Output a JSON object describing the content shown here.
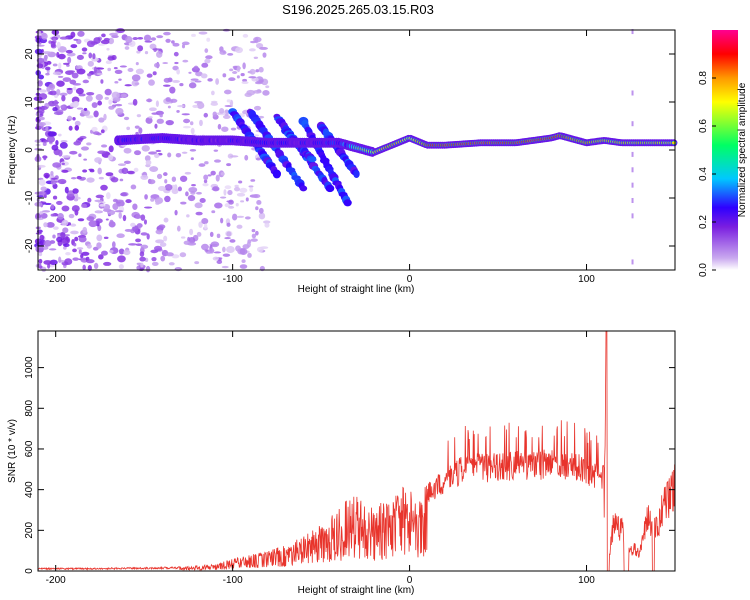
{
  "title": "S196.2025.265.03.15.R03",
  "colors": {
    "snr_line": "#e8342c",
    "axis": "#000000",
    "spectrogram_palette": [
      "#ffffff",
      "#c9a8ef",
      "#7a1ee0",
      "#2f00ff",
      "#00c8ff",
      "#00ff64",
      "#ffff00",
      "#ff9900",
      "#ff0000",
      "#ff0090"
    ]
  },
  "chart_data": [
    {
      "type": "heatmap",
      "name": "spectrogram",
      "xlabel": "Height of straight line (km)",
      "ylabel": "Frequency (Hz)",
      "xlim": [
        -210,
        150
      ],
      "ylim": [
        -25,
        25
      ],
      "x_ticks": [
        -200,
        -100,
        0,
        100
      ],
      "x_tick_labels": [
        "-200",
        "-100",
        "0",
        "100"
      ],
      "y_ticks": [
        -20,
        -10,
        0,
        10,
        20
      ],
      "y_tick_labels": [
        "-20",
        "-10",
        "0",
        "10",
        "20"
      ],
      "description_series": {
        "centerline_x": [
          -165,
          -140,
          -120,
          -100,
          -80,
          -60,
          -40,
          -25,
          -20,
          -10,
          0,
          10,
          20,
          40,
          60,
          80,
          85,
          90,
          100,
          110,
          120,
          130,
          140,
          150
        ],
        "centerline_freq": [
          2,
          2.5,
          2,
          2,
          1.5,
          1.5,
          1.5,
          0,
          -0.5,
          1,
          2.5,
          1,
          1,
          1.5,
          1.5,
          2.5,
          3,
          2.5,
          1.5,
          2,
          1.5,
          1.5,
          1.5,
          1.5
        ],
        "peak_amplitude": [
          0.35,
          0.4,
          0.3,
          0.35,
          0.4,
          0.35,
          0.45,
          0.7,
          0.75,
          0.85,
          0.7,
          0.9,
          0.95,
          0.95,
          0.95,
          0.95,
          0.95,
          0.85,
          0.85,
          0.8,
          0.8,
          0.8,
          0.8,
          0.75
        ]
      },
      "colorbar": {
        "label": "Normalized spectral amplitude",
        "range": [
          0,
          1
        ],
        "ticks": [
          0.0,
          0.2,
          0.4,
          0.6,
          0.8
        ],
        "tick_labels": [
          "0.0",
          "0.2",
          "0.4",
          "0.6",
          "0.8"
        ]
      }
    },
    {
      "type": "line",
      "name": "snr",
      "xlabel": "Height of straight line (km)",
      "ylabel": "SNR (10 * v/v)",
      "xlim": [
        -210,
        150
      ],
      "ylim": [
        0,
        1180
      ],
      "x_ticks": [
        -200,
        -100,
        0,
        100
      ],
      "x_tick_labels": [
        "-200",
        "-100",
        "0",
        "100"
      ],
      "y_ticks": [
        0,
        200,
        400,
        600,
        800,
        1000
      ],
      "y_tick_labels": [
        "0",
        "200",
        "400",
        "600",
        "800",
        "1000"
      ],
      "series": [
        {
          "name": "SNR envelope",
          "x": [
            -210,
            -180,
            -150,
            -130,
            -110,
            -100,
            -90,
            -80,
            -70,
            -60,
            -50,
            -45,
            -40,
            -35,
            -30,
            -25,
            -20,
            -15,
            -10,
            -5,
            0,
            10,
            20,
            30,
            40,
            50,
            60,
            70,
            80,
            90,
            95,
            100,
            105,
            110,
            111,
            112,
            115,
            120,
            125,
            130,
            135,
            140,
            145,
            150
          ],
          "y": [
            15,
            15,
            18,
            22,
            35,
            60,
            80,
            100,
            130,
            170,
            230,
            280,
            320,
            360,
            380,
            360,
            310,
            350,
            380,
            410,
            420,
            430,
            510,
            570,
            580,
            580,
            590,
            595,
            600,
            590,
            580,
            560,
            540,
            520,
            1180,
            0,
            300,
            280,
            150,
            120,
            360,
            300,
            480,
            560
          ]
        }
      ]
    }
  ]
}
